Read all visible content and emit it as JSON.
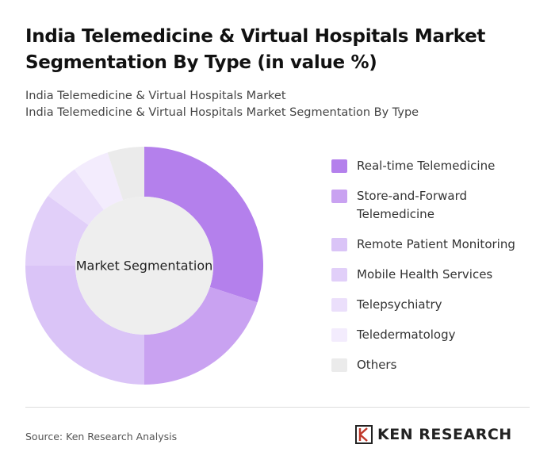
{
  "chart_data": {
    "type": "donut",
    "title": "India Telemedicine & Virtual Hospitals Market Segmentation By Type (in value %)",
    "subtitle": [
      "India Telemedicine & Virtual Hospitals Market",
      "India Telemedicine & Virtual Hospitals Market Segmentation By Type"
    ],
    "center_label": "Market Segmentation",
    "categories": [
      "Real-time Telemedicine",
      "Store-and-Forward Telemedicine",
      "Remote Patient Monitoring",
      "Mobile Health Services",
      "Telepsychiatry",
      "Teledermatology",
      "Others"
    ],
    "values": [
      30,
      20,
      25,
      10,
      5,
      5,
      5
    ],
    "colors": [
      "#b480ec",
      "#c9a2f1",
      "#dac4f7",
      "#e1cff9",
      "#ebdffb",
      "#f3ecfd",
      "#ebebeb"
    ],
    "legend": "right"
  },
  "source": "Source: Ken Research Analysis",
  "logo": "KEN RESEARCH"
}
